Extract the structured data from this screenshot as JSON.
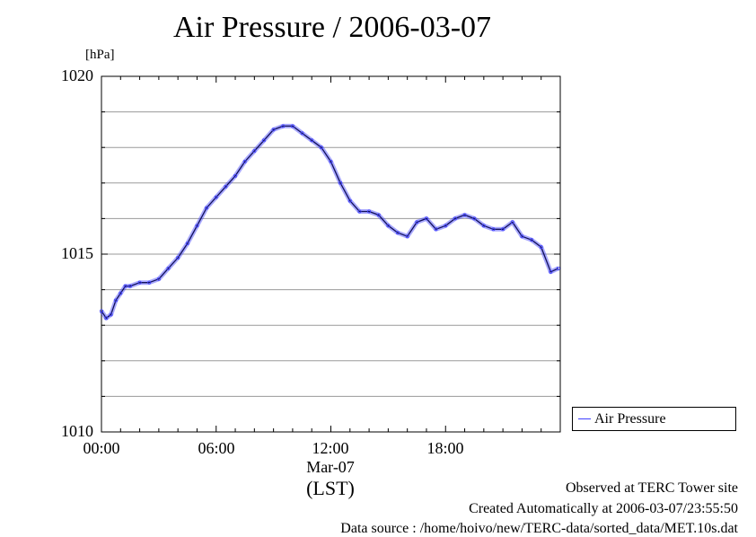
{
  "chart_data": {
    "type": "line",
    "title": "Air Pressure / 2006-03-07",
    "ylabel": "[hPa]",
    "xlabel": "(LST)",
    "date_label": "Mar-07",
    "ylim": [
      1010,
      1020
    ],
    "xlim": [
      0,
      24
    ],
    "y_ticks": [
      "1020",
      "1015",
      "1010"
    ],
    "x_ticks": [
      "00:00",
      "06:00",
      "12:00",
      "18:00"
    ],
    "grid": true,
    "legend": "outside-right",
    "series": [
      {
        "name": "Air Pressure",
        "color": "#4040ff",
        "x": [
          0.0,
          0.25,
          0.5,
          0.75,
          1.0,
          1.25,
          1.5,
          2.0,
          2.5,
          3.0,
          3.5,
          4.0,
          4.5,
          5.0,
          5.5,
          6.0,
          6.5,
          7.0,
          7.5,
          8.0,
          8.5,
          9.0,
          9.5,
          10.0,
          10.5,
          11.0,
          11.5,
          12.0,
          12.5,
          13.0,
          13.5,
          14.0,
          14.5,
          15.0,
          15.5,
          16.0,
          16.5,
          17.0,
          17.5,
          18.0,
          18.5,
          19.0,
          19.5,
          20.0,
          20.5,
          21.0,
          21.5,
          22.0,
          22.5,
          23.0,
          23.5,
          23.9
        ],
        "y": [
          1013.4,
          1013.2,
          1013.3,
          1013.7,
          1013.9,
          1014.1,
          1014.1,
          1014.2,
          1014.2,
          1014.3,
          1014.6,
          1014.9,
          1015.3,
          1015.8,
          1016.3,
          1016.6,
          1016.9,
          1017.2,
          1017.6,
          1017.9,
          1018.2,
          1018.5,
          1018.6,
          1018.6,
          1018.4,
          1018.2,
          1018.0,
          1017.6,
          1017.0,
          1016.5,
          1016.2,
          1016.2,
          1016.1,
          1015.8,
          1015.6,
          1015.5,
          1015.9,
          1016.0,
          1015.7,
          1015.8,
          1016.0,
          1016.1,
          1016.0,
          1015.8,
          1015.7,
          1015.7,
          1015.9,
          1015.5,
          1015.4,
          1015.2,
          1014.5,
          1014.6
        ]
      }
    ]
  },
  "footer": {
    "site": "Observed at TERC Tower site",
    "created": "Created Automatically at 2006-03-07/23:55:50",
    "source": "Data source : /home/hoivo/new/TERC-data/sorted_data/MET.10s.dat"
  }
}
